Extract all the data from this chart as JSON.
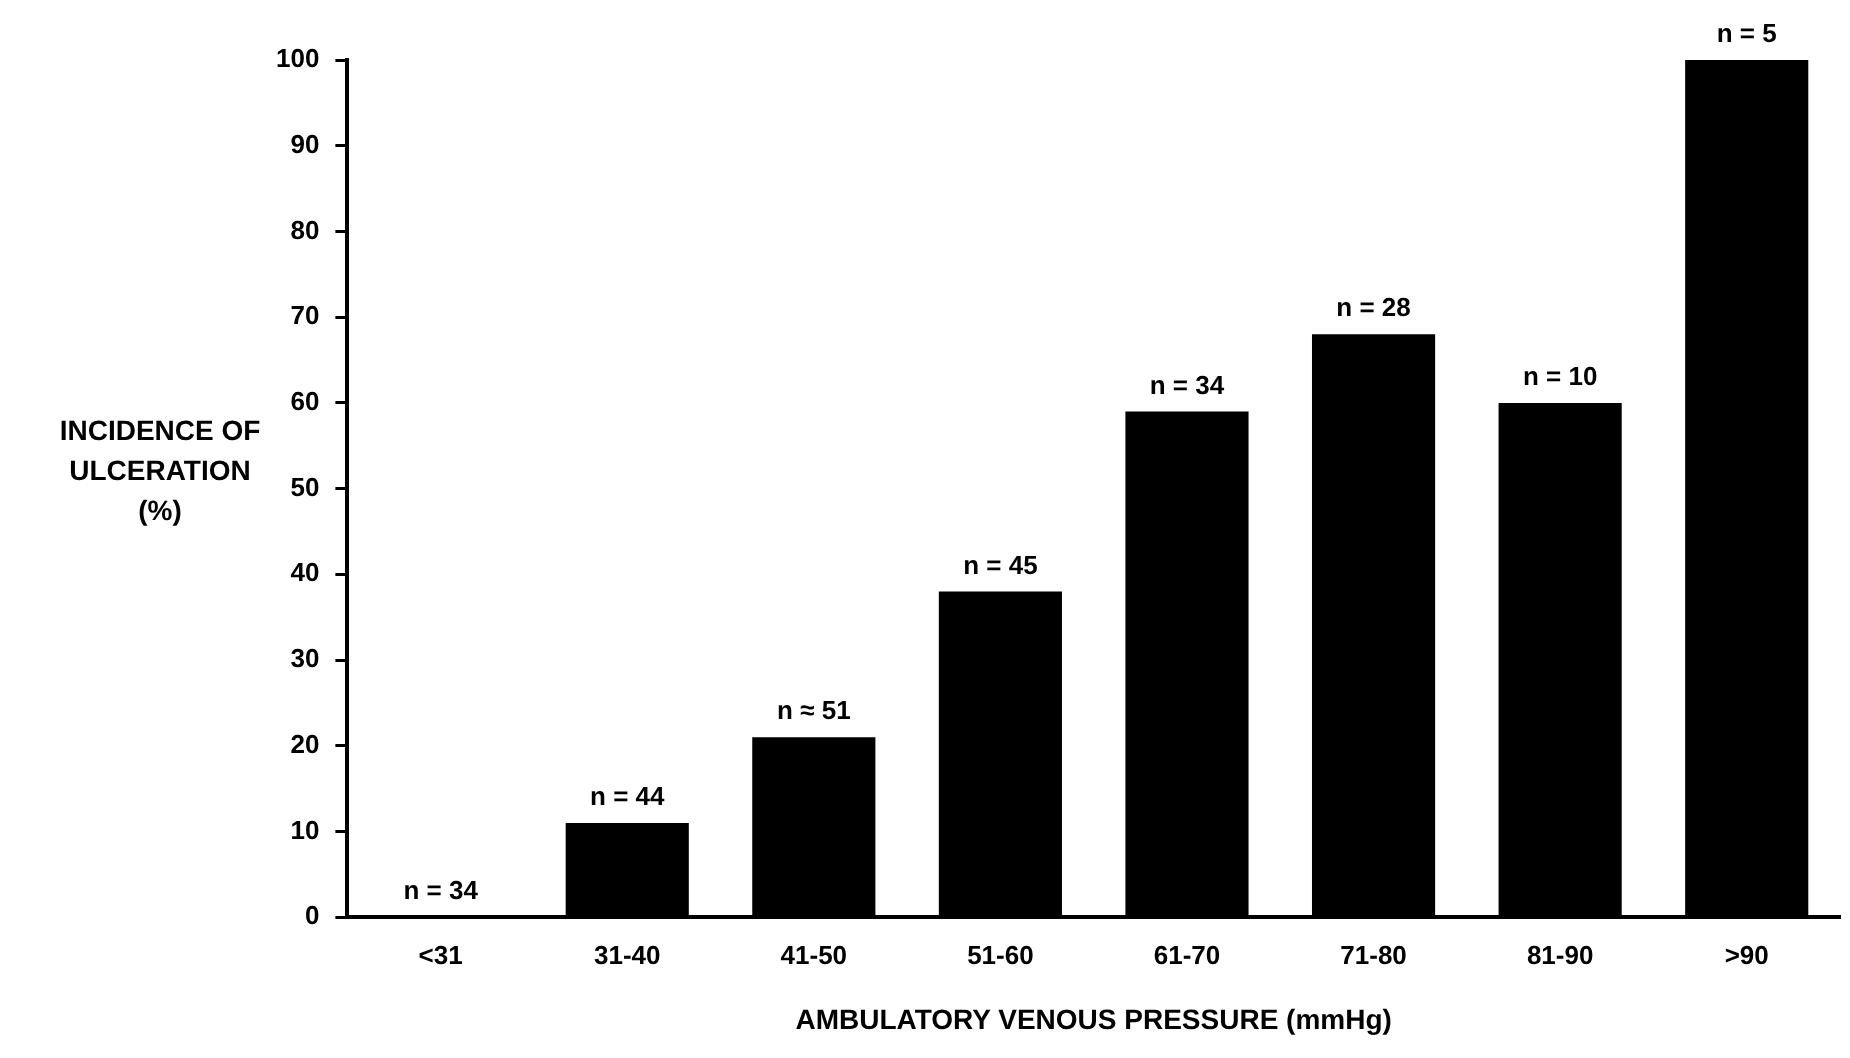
{
  "chart_data": {
    "type": "bar",
    "xlabel": "AMBULATORY VENOUS PRESSURE (mmHg)",
    "ylabel": "INCIDENCE OF\nULCERATION\n(%)",
    "categories": [
      "<31",
      "31-40",
      "41-50",
      "51-60",
      "61-70",
      "71-80",
      "81-90",
      ">90"
    ],
    "values": [
      0,
      11,
      21,
      38,
      59,
      68,
      60,
      100
    ],
    "color": "#000000",
    "ylim": [
      0,
      100
    ],
    "yticks": [
      0,
      10,
      20,
      30,
      40,
      50,
      60,
      70,
      80,
      90,
      100
    ],
    "grid": false,
    "legend": false,
    "annotations": [
      {
        "text": "n = 34",
        "x": "<31",
        "y": 0
      },
      {
        "text": "n = 44",
        "x": "31-40",
        "y": 11
      },
      {
        "text": "n ≈ 51",
        "x": "41-50",
        "y": 21
      },
      {
        "text": "n = 45",
        "x": "51-60",
        "y": 38
      },
      {
        "text": "n = 34",
        "x": "61-70",
        "y": 59
      },
      {
        "text": "n = 28",
        "x": "71-80",
        "y": 68
      },
      {
        "text": "n = 10",
        "x": "81-90",
        "y": 60
      },
      {
        "text": "n = 5",
        "x": ">90",
        "y": 100
      }
    ]
  }
}
